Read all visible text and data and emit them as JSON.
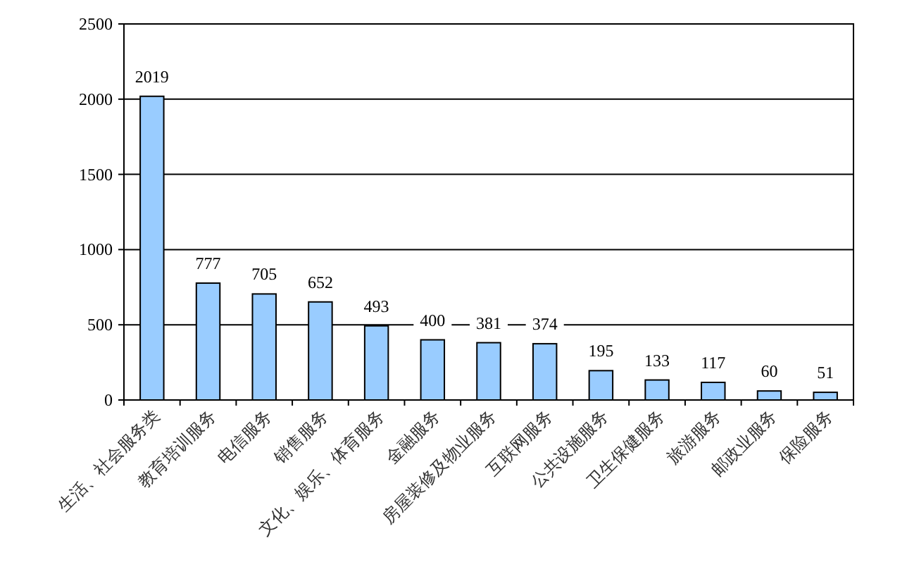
{
  "chart_data": {
    "type": "bar",
    "categories": [
      "生活、社会服务类",
      "教育培训服务",
      "电信服务",
      "销售服务",
      "文化、娱乐、体育服务",
      "金融服务",
      "房屋装修及物业服务",
      "互联网服务",
      "公共设施服务",
      "卫生保健服务",
      "旅游服务",
      "邮政业服务",
      "保险服务"
    ],
    "values": [
      2019,
      777,
      705,
      652,
      493,
      400,
      381,
      374,
      195,
      133,
      117,
      60,
      51
    ],
    "color": "#99ccff",
    "ylim": [
      0,
      2500
    ],
    "yticks": [
      0,
      500,
      1000,
      1500,
      2000,
      2500
    ],
    "grid": "y",
    "data_labels": true
  }
}
